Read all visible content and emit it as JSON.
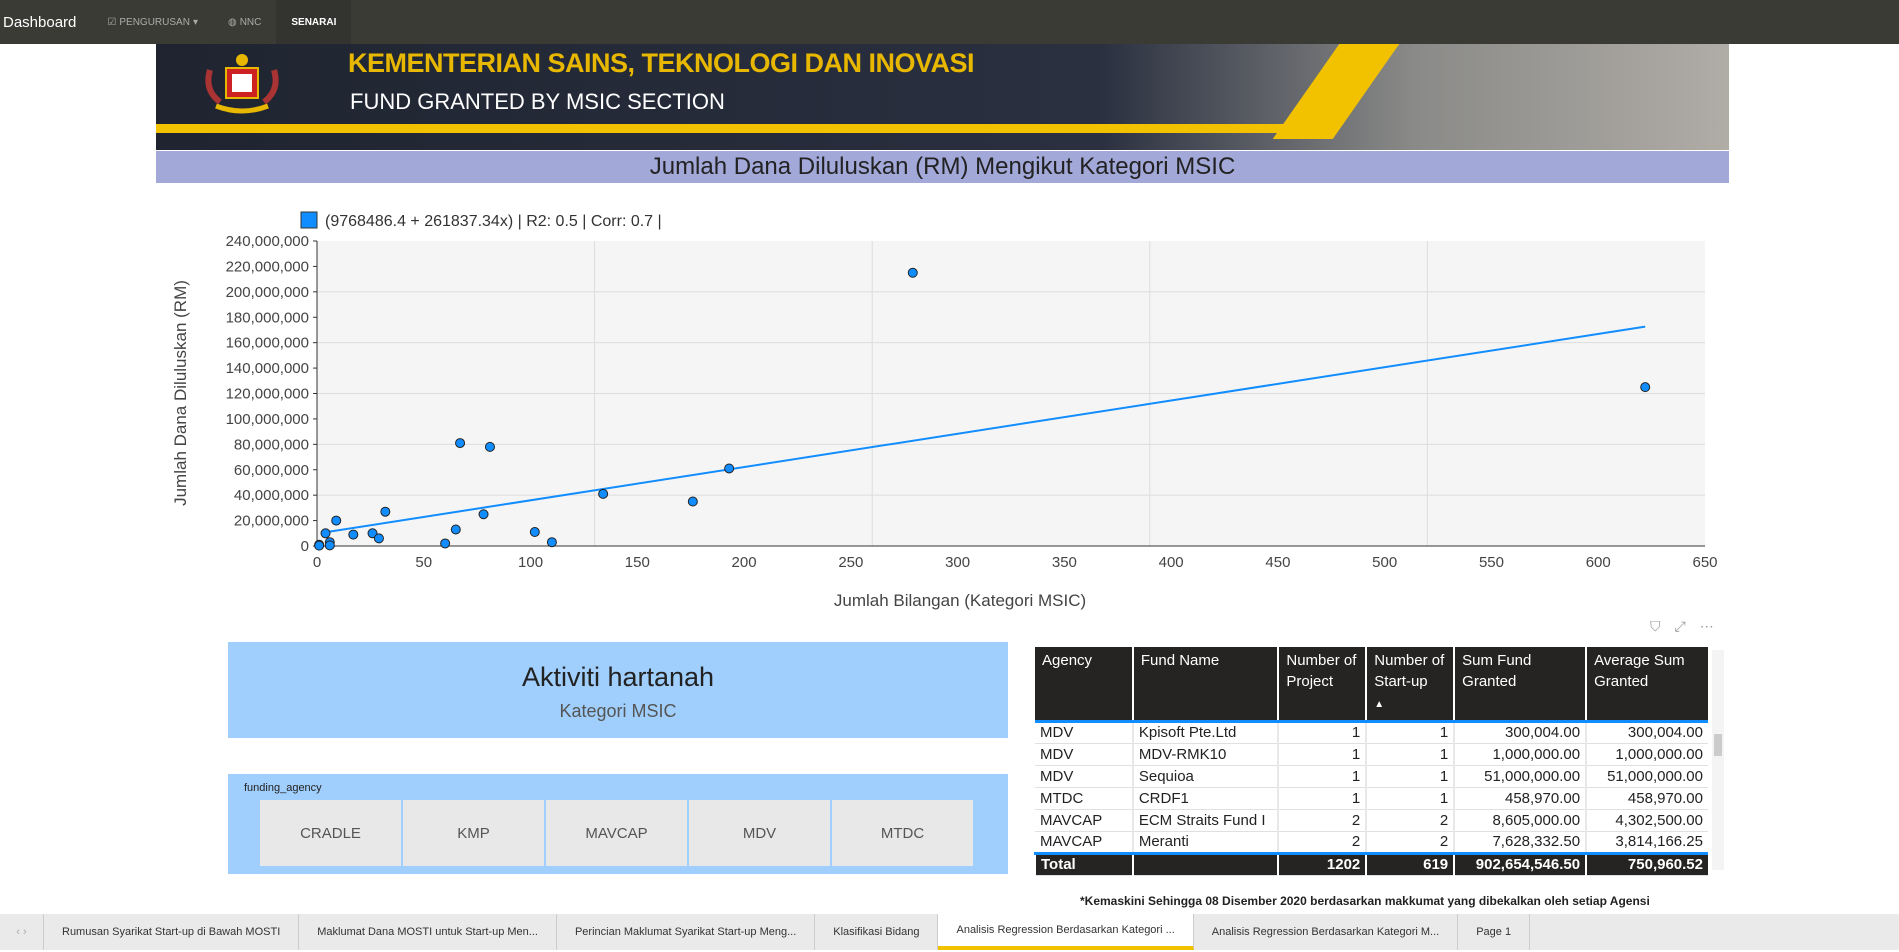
{
  "nav": {
    "brand": "Dashboard",
    "items": [
      {
        "label": "PENGURUSAN",
        "icon": "check-square-icon"
      },
      {
        "label": "NNC",
        "icon": "globe-icon"
      },
      {
        "label": "SENARAI"
      }
    ]
  },
  "banner": {
    "title": "KEMENTERIAN SAINS, TEKNOLOGI DAN INOVASI",
    "subtitle": "FUND GRANTED BY MSIC SECTION"
  },
  "page_title": "Jumlah Dana Diluluskan (RM) Mengikut Kategori MSIC",
  "chart_data": {
    "type": "scatter",
    "legend": "(9768486.4 + 261837.34x) | R2: 0.5 | Corr: 0.7 |",
    "xlabel": "Jumlah Bilangan (Kategori MSIC)",
    "ylabel": "Jumlah Dana Diluluskan (RM)",
    "xlim": [
      0,
      650
    ],
    "ylim": [
      0,
      240000000
    ],
    "xticks": [
      "0",
      "50",
      "100",
      "150",
      "200",
      "250",
      "300",
      "350",
      "400",
      "450",
      "500",
      "550",
      "600",
      "650"
    ],
    "yticks": [
      "0",
      "20,000,000",
      "40,000,000",
      "60,000,000",
      "80,000,000",
      "100,000,000",
      "120,000,000",
      "140,000,000",
      "160,000,000",
      "180,000,000",
      "200,000,000",
      "220,000,000",
      "240,000,000"
    ],
    "points": [
      [
        1,
        1000000
      ],
      [
        1,
        300000
      ],
      [
        4,
        10000000
      ],
      [
        6,
        3000000
      ],
      [
        6,
        500000
      ],
      [
        9,
        20000000
      ],
      [
        17,
        9000000
      ],
      [
        26,
        10000000
      ],
      [
        29,
        6000000
      ],
      [
        32,
        27000000
      ],
      [
        60,
        2000000
      ],
      [
        65,
        13000000
      ],
      [
        67,
        81000000
      ],
      [
        78,
        25000000
      ],
      [
        81,
        78000000
      ],
      [
        102,
        11000000
      ],
      [
        110,
        3000000
      ],
      [
        134,
        41000000
      ],
      [
        176,
        35000000
      ],
      [
        193,
        61000000
      ],
      [
        279,
        215000000
      ],
      [
        622,
        125000000
      ]
    ],
    "trendline": {
      "intercept": 9768486.4,
      "slope": 261837.34,
      "x_range": [
        4,
        622
      ]
    },
    "color": "#118dff",
    "grid": true
  },
  "card": {
    "value": "Aktiviti hartanah",
    "label": "Kategori MSIC"
  },
  "slicer": {
    "title": "funding_agency",
    "options": [
      "CRADLE",
      "KMP",
      "MAVCAP",
      "MDV",
      "MTDC"
    ]
  },
  "table": {
    "headers": [
      "Agency",
      "Fund Name",
      "Number of Project",
      "Number of Start-up",
      "Sum Fund Granted",
      "Average Sum Granted"
    ],
    "rows": [
      [
        "MDV",
        "Kpisoft Pte.Ltd",
        "1",
        "1",
        "300,004.00",
        "300,004.00"
      ],
      [
        "MDV",
        "MDV-RMK10",
        "1",
        "1",
        "1,000,000.00",
        "1,000,000.00"
      ],
      [
        "MDV",
        "Sequioa",
        "1",
        "1",
        "51,000,000.00",
        "51,000,000.00"
      ],
      [
        "MTDC",
        "CRDF1",
        "1",
        "1",
        "458,970.00",
        "458,970.00"
      ],
      [
        "MAVCAP",
        "ECM Straits Fund I",
        "2",
        "2",
        "8,605,000.00",
        "4,302,500.00"
      ],
      [
        "MAVCAP",
        "Meranti",
        "2",
        "2",
        "7,628,332.50",
        "3,814,166.25"
      ]
    ],
    "total": [
      "Total",
      "",
      "1202",
      "619",
      "902,654,546.50",
      "750,960.52"
    ]
  },
  "footnote": "*Kemaskini Sehingga 08 Disember 2020 berdasarkan makkumat yang dibekalkan oleh setiap Agensi",
  "tabs": [
    "Rumusan Syarikat Start-up di Bawah MOSTI",
    "Maklumat Dana MOSTI untuk Start-up Men...",
    "Perincian Maklumat Syarikat Start-up Meng...",
    "Klasifikasi Bidang",
    "Analisis Regression Berdasarkan Kategori ...",
    "Analisis Regression Berdasarkan Kategori M...",
    "Page 1"
  ],
  "active_tab": 4
}
